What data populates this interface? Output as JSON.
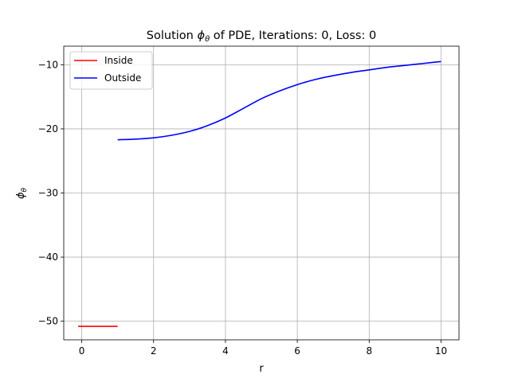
{
  "chart_data": {
    "type": "line",
    "title_prefix": "Solution ",
    "title_symbol": "ϕ",
    "title_subscript": "θ",
    "title_suffix": " of PDE, Iterations: 0, Loss: 0",
    "xlabel": "r",
    "ylabel_symbol": "ϕ",
    "ylabel_subscript": "θ",
    "xlim": [
      -0.5,
      10.5
    ],
    "ylim": [
      -52.9,
      -7.1
    ],
    "xticks": [
      0,
      2,
      4,
      6,
      8,
      10
    ],
    "yticks": [
      -50,
      -40,
      -30,
      -20,
      -10
    ],
    "grid": true,
    "legend_position": "top-left",
    "series": [
      {
        "name": "Inside",
        "color": "#ff0000",
        "x": [
          -0.1,
          1.0
        ],
        "y": [
          -50.8,
          -50.8
        ]
      },
      {
        "name": "Outside",
        "color": "#0000ff",
        "x": [
          1.0,
          1.5,
          2.0,
          2.5,
          3.0,
          3.5,
          4.0,
          4.5,
          5.0,
          5.5,
          6.0,
          6.5,
          7.0,
          7.5,
          8.0,
          8.5,
          9.0,
          9.5,
          10.0
        ],
        "y": [
          -21.7,
          -21.6,
          -21.4,
          -21.0,
          -20.4,
          -19.5,
          -18.3,
          -16.8,
          -15.3,
          -14.1,
          -13.1,
          -12.3,
          -11.7,
          -11.2,
          -10.8,
          -10.4,
          -10.1,
          -9.8,
          -9.5
        ]
      }
    ]
  }
}
